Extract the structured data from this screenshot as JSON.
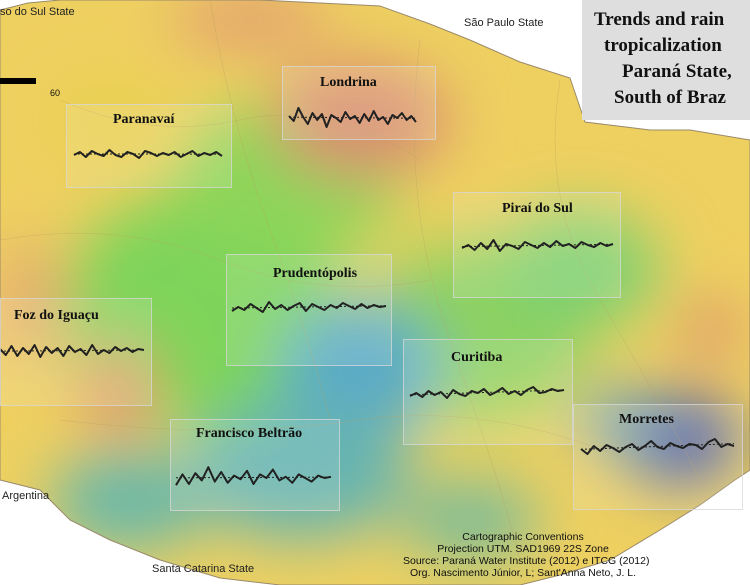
{
  "states": {
    "mato_grosso_do_sul": "so do Sul State",
    "sao_paulo": "São Paulo State",
    "argentina": "Argentina",
    "santa_catarina": "Santa Catarina State"
  },
  "title_lines": [
    "Trends and rain",
    "tropicalization",
    "Paraná State,",
    "South of Braz"
  ],
  "scale_label": "60",
  "stations": [
    {
      "name": "Londrina",
      "values": [
        0.2,
        -0.3,
        1.0,
        0.1,
        -0.6,
        0.5,
        -0.2,
        0.4,
        -0.9,
        0.3,
        0.0,
        -0.4,
        0.6,
        -0.1,
        0.2,
        -0.5,
        0.4,
        -0.3,
        0.7,
        -0.2,
        0.1,
        -0.6,
        0.3,
        0.0,
        0.5,
        -0.2,
        0.2,
        -0.4
      ]
    },
    {
      "name": "Paranavaí",
      "values": [
        0.0,
        0.3,
        -0.2,
        0.4,
        0.1,
        -0.1,
        0.5,
        0.0,
        -0.2,
        0.3,
        0.1,
        -0.3,
        0.4,
        0.2,
        -0.1,
        0.2,
        0.0,
        0.3,
        -0.2,
        0.1,
        0.4,
        -0.1,
        0.2,
        0.0,
        0.3,
        -0.1
      ]
    },
    {
      "name": "Piraí do Sul",
      "values": [
        -0.2,
        0.1,
        -0.4,
        0.3,
        -0.3,
        0.6,
        -0.5,
        0.2,
        0.0,
        -0.3,
        0.4,
        0.1,
        -0.2,
        0.3,
        -0.1,
        0.5,
        0.0,
        0.2,
        -0.2,
        0.4,
        0.1,
        -0.1,
        0.3,
        0.0,
        0.2
      ]
    },
    {
      "name": "Prudentópolis",
      "values": [
        -0.3,
        0.1,
        -0.2,
        0.4,
        0.0,
        -0.4,
        0.6,
        -0.1,
        0.3,
        -0.2,
        0.2,
        0.5,
        -0.3,
        0.4,
        0.1,
        -0.2,
        0.3,
        0.0,
        0.5,
        0.2,
        -0.1,
        0.4,
        0.0,
        0.3,
        0.1,
        0.2
      ]
    },
    {
      "name": "Foz do Iguaçu",
      "values": [
        0.2,
        -0.4,
        0.5,
        -0.5,
        0.3,
        -0.3,
        0.6,
        -0.6,
        0.4,
        -0.2,
        0.3,
        -0.5,
        0.5,
        -0.1,
        0.2,
        -0.4,
        0.6,
        -0.3,
        0.1,
        -0.2,
        0.4,
        0.0,
        0.3,
        -0.1,
        0.2,
        0.1
      ]
    },
    {
      "name": "Curitiba",
      "values": [
        -0.4,
        -0.1,
        -0.5,
        0.1,
        -0.3,
        0.0,
        -0.6,
        0.2,
        -0.2,
        -0.4,
        0.1,
        -0.1,
        0.3,
        -0.3,
        0.0,
        0.4,
        -0.2,
        0.1,
        -0.3,
        0.2,
        0.5,
        -0.1,
        0.0,
        0.3,
        0.1,
        0.2
      ]
    },
    {
      "name": "Morretes",
      "values": [
        -0.2,
        -0.7,
        0.1,
        -0.4,
        0.2,
        -0.1,
        -0.5,
        0.0,
        0.3,
        -0.3,
        0.1,
        0.6,
        0.0,
        -0.2,
        0.4,
        0.1,
        -0.1,
        0.3,
        0.2,
        -0.2,
        0.5,
        0.8,
        0.0,
        0.3,
        0.1
      ]
    },
    {
      "name": "Francisco Beltrão",
      "values": [
        -0.6,
        0.3,
        -0.5,
        0.4,
        -0.2,
        0.9,
        -0.3,
        0.5,
        -0.4,
        0.2,
        -0.1,
        0.6,
        -0.5,
        0.3,
        0.0,
        0.7,
        -0.2,
        0.1,
        -0.4,
        0.3,
        0.0,
        -0.3,
        0.2,
        0.0,
        0.1
      ]
    }
  ],
  "footer": [
    "Cartographic Conventions",
    "Projection UTM. SAD1969 22S Zone",
    "Source: Paraná Water Institute (2012) e ITCG (2012)",
    "Org. Nascimento Júnior, L; Sant'Anna Neto, J. L."
  ],
  "colors": {
    "wet": "#4a5aa8",
    "humid": "#5aa6c6",
    "mid": "#7ed45a",
    "moderate": "#f0e048",
    "dry": "#d99070"
  }
}
